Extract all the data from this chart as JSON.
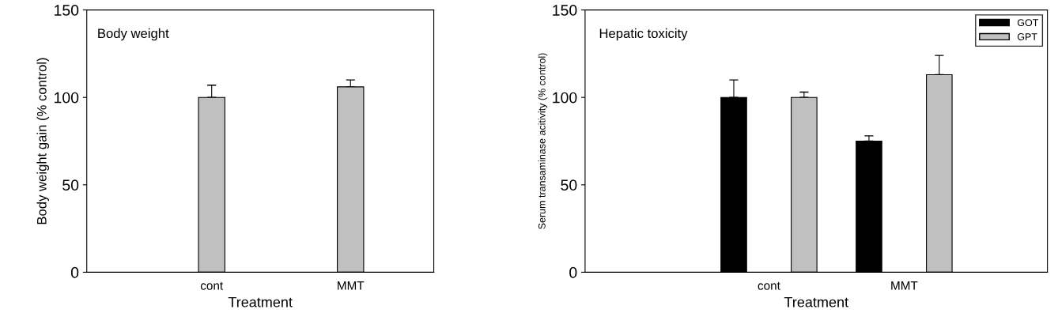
{
  "chart_data": [
    {
      "type": "bar",
      "title": "Body weight",
      "xlabel": "Treatment",
      "ylabel": "Body weight gain (% control)",
      "categories": [
        "cont",
        "MMT"
      ],
      "series": [
        {
          "color": "#c0c0c0",
          "values": [
            100,
            106
          ],
          "errors": [
            [
              100,
              107
            ],
            [
              106,
              110
            ]
          ]
        }
      ],
      "ylim": [
        0,
        150
      ],
      "yticks": [
        0,
        50,
        100,
        150
      ],
      "grid": false,
      "legend": false
    },
    {
      "type": "bar",
      "title": "Hepatic toxicity",
      "xlabel": "Treatment",
      "ylabel": "Serum transaminase acitivity (% control)",
      "categories": [
        "cont",
        "MMT"
      ],
      "series": [
        {
          "name": "GOT",
          "color": "#000000",
          "values": [
            100,
            75
          ],
          "errors": [
            [
              100,
              110
            ],
            [
              75,
              78
            ]
          ]
        },
        {
          "name": "GPT",
          "color": "#c0c0c0",
          "values": [
            100,
            113
          ],
          "errors": [
            [
              100,
              103
            ],
            [
              113,
              124
            ]
          ]
        }
      ],
      "ylim": [
        0,
        150
      ],
      "yticks": [
        0,
        50,
        100,
        150
      ],
      "grid": false,
      "legend": "top right"
    }
  ]
}
